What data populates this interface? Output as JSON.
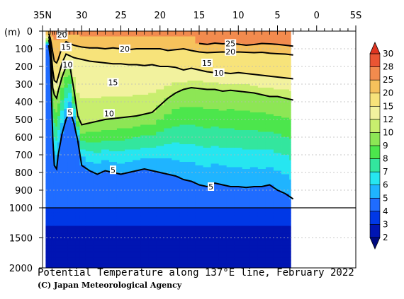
{
  "chart_data": {
    "type": "heatmap",
    "title": "Potential Temperature along 137°E line, February 2022",
    "credit": "(C) Japan Meteorological Agency",
    "x_axis": {
      "ticks": [
        {
          "value": 35,
          "label": "35N"
        },
        {
          "value": 30,
          "label": "30"
        },
        {
          "value": 25,
          "label": "25"
        },
        {
          "value": 20,
          "label": "20"
        },
        {
          "value": 15,
          "label": "15"
        },
        {
          "value": 10,
          "label": "10"
        },
        {
          "value": 5,
          "label": "5"
        },
        {
          "value": 0,
          "label": "0"
        },
        {
          "value": -5,
          "label": "5S"
        }
      ],
      "range": [
        35,
        -5
      ],
      "station_latitudes": [
        34.2,
        34.0,
        33.7,
        33.5,
        33.2,
        33.0,
        32.5,
        32.0,
        31.5,
        31.0,
        30.5,
        30.0,
        29.0,
        28.0,
        27.0,
        26.0,
        25.0,
        24.0,
        23.0,
        22.0,
        21.0,
        20.0,
        19.0,
        18.0,
        17.0,
        16.0,
        15.0,
        14.0,
        13.0,
        12.0,
        11.0,
        10.0,
        9.0,
        8.0,
        7.0,
        6.0,
        5.0,
        4.0,
        3.0
      ]
    },
    "y_axis": {
      "unit_label": "(m)",
      "ticks": [
        {
          "value": 0,
          "label": "0"
        },
        {
          "value": 100,
          "label": "100"
        },
        {
          "value": 200,
          "label": "200"
        },
        {
          "value": 300,
          "label": "300"
        },
        {
          "value": 400,
          "label": "400"
        },
        {
          "value": 500,
          "label": "500"
        },
        {
          "value": 600,
          "label": "600"
        },
        {
          "value": 700,
          "label": "700"
        },
        {
          "value": 800,
          "label": "800"
        },
        {
          "value": 900,
          "label": "900"
        },
        {
          "value": 1000,
          "label": "1000"
        },
        {
          "value": 1500,
          "label": "1500"
        },
        {
          "value": 2000,
          "label": "2000"
        }
      ],
      "range": [
        0,
        2000
      ],
      "scale_break_at": 1000
    },
    "data_extent_lat": [
      34.6,
      3.3
    ],
    "colorbar": {
      "levels": [
        2,
        3,
        4,
        5,
        6,
        7,
        8,
        9,
        10,
        12,
        15,
        20,
        25,
        28,
        30
      ],
      "colors": [
        "#000a80",
        "#0015b3",
        "#0038e6",
        "#1f6cff",
        "#1fb4ff",
        "#26e6f0",
        "#33e69e",
        "#4ce64c",
        "#8de655",
        "#c8ee6e",
        "#f2f29e",
        "#f7e37a",
        "#f6c25c",
        "#f28b4e",
        "#ea5533",
        "#e03420"
      ]
    },
    "isotherms": [
      {
        "value": 25,
        "depths": [
          null,
          null,
          null,
          null,
          null,
          null,
          null,
          null,
          null,
          null,
          null,
          null,
          null,
          null,
          null,
          null,
          null,
          null,
          null,
          null,
          null,
          null,
          null,
          null,
          null,
          null,
          70,
          75,
          68,
          72,
          70,
          74,
          80,
          76,
          70,
          72,
          75,
          80,
          85
        ]
      },
      {
        "value": 20,
        "depths": [
          15,
          40,
          120,
          170,
          180,
          160,
          90,
          60,
          70,
          80,
          85,
          90,
          95,
          95,
          100,
          95,
          100,
          105,
          100,
          100,
          100,
          100,
          110,
          105,
          100,
          110,
          118,
          122,
          120,
          118,
          120,
          118,
          120,
          122,
          120,
          125,
          128,
          130,
          135
        ]
      },
      {
        "value": 15,
        "depths": [
          30,
          70,
          220,
          280,
          290,
          260,
          180,
          130,
          140,
          150,
          155,
          160,
          170,
          175,
          180,
          185,
          185,
          190,
          190,
          195,
          190,
          200,
          200,
          205,
          220,
          210,
          220,
          230,
          235,
          235,
          240,
          235,
          240,
          245,
          250,
          255,
          260,
          265,
          270
        ]
      },
      {
        "value": 10,
        "depths": [
          50,
          100,
          320,
          360,
          380,
          340,
          260,
          200,
          200,
          330,
          480,
          530,
          520,
          510,
          500,
          495,
          490,
          485,
          480,
          470,
          460,
          420,
          380,
          350,
          330,
          320,
          325,
          330,
          330,
          340,
          335,
          340,
          345,
          350,
          360,
          370,
          370,
          380,
          390
        ]
      },
      {
        "value": 5,
        "depths": [
          80,
          150,
          600,
          760,
          780,
          700,
          580,
          500,
          450,
          520,
          620,
          760,
          790,
          810,
          790,
          800,
          810,
          800,
          790,
          780,
          790,
          800,
          810,
          820,
          840,
          850,
          870,
          880,
          860,
          870,
          880,
          880,
          885,
          880,
          880,
          870,
          900,
          920,
          950
        ]
      }
    ],
    "contour_labels": [
      {
        "value": "20",
        "lat": 32.5,
        "depth": 20
      },
      {
        "value": "15",
        "lat": 32.0,
        "depth": 90
      },
      {
        "value": "10",
        "lat": 31.8,
        "depth": 190
      },
      {
        "value": "5",
        "lat": 31.5,
        "depth": 460
      },
      {
        "value": "20",
        "lat": 24.5,
        "depth": 100
      },
      {
        "value": "15",
        "lat": 26.0,
        "depth": 290
      },
      {
        "value": "10",
        "lat": 26.5,
        "depth": 465
      },
      {
        "value": "5",
        "lat": 26.0,
        "depth": 785
      },
      {
        "value": "25",
        "lat": 11.0,
        "depth": 70
      },
      {
        "value": "20",
        "lat": 11.0,
        "depth": 115
      },
      {
        "value": "15",
        "lat": 14.0,
        "depth": 180
      },
      {
        "value": "10",
        "lat": 12.5,
        "depth": 235
      },
      {
        "value": "5",
        "lat": 13.5,
        "depth": 880
      }
    ],
    "grid": true
  }
}
